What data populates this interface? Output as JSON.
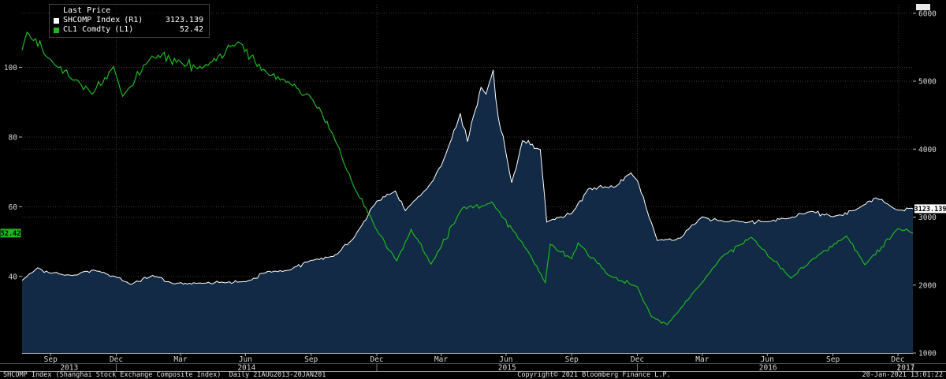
{
  "legend": {
    "title": "Last Price",
    "items": [
      {
        "label": "SHCOMP Index",
        "axis_tag": "(R1)",
        "value": "3123.139",
        "color": "#ffffff"
      },
      {
        "label": "CL1 Comdty",
        "axis_tag": "(L1)",
        "value": "52.42",
        "color": "#1fb71f"
      }
    ]
  },
  "axis_labels": {
    "right_last": "3123.139",
    "left_last": "52.42"
  },
  "footer": {
    "left": "SHCOMP Index (Shanghai Stock Exchange Composite Index)  Daily 21AUG2013-20JAN201",
    "center": "Copyright© 2021 Bloomberg Finance L.P.",
    "right": "20-Jan-2021 13:01:22"
  },
  "colors": {
    "background": "#000000",
    "shcomp_line": "#ffffff",
    "shcomp_area_fill": "#122a45",
    "cl1_line": "#1fb71f",
    "grid": "#3a3a3a",
    "axis_text": "#d9d9d9"
  },
  "chart_data": {
    "type": "line",
    "title": "Last Price",
    "x_range": [
      "2013-08-21",
      "2017-01-20"
    ],
    "left_axis": {
      "name": "CL1 Comdty (L1)",
      "ticks": [
        40,
        60,
        80,
        100
      ],
      "range": [
        18,
        118
      ]
    },
    "right_axis": {
      "name": "SHCOMP Index (R1)",
      "ticks": [
        1000,
        2000,
        3000,
        4000,
        5000,
        6000
      ],
      "range": [
        1000,
        6125
      ]
    },
    "grid": "dotted",
    "legend_position": "top-left",
    "x_ticks": [
      {
        "label": "Sep",
        "date": "2013-09-30"
      },
      {
        "label": "Dec",
        "date": "2013-12-31"
      },
      {
        "label": "Mar",
        "date": "2014-03-31"
      },
      {
        "label": "Jun",
        "date": "2014-06-30"
      },
      {
        "label": "Sep",
        "date": "2014-09-30"
      },
      {
        "label": "Dec",
        "date": "2014-12-31"
      },
      {
        "label": "Mar",
        "date": "2015-03-31"
      },
      {
        "label": "Jun",
        "date": "2015-06-30"
      },
      {
        "label": "Sep",
        "date": "2015-09-30"
      },
      {
        "label": "Dec",
        "date": "2015-12-31"
      },
      {
        "label": "Mar",
        "date": "2016-03-31"
      },
      {
        "label": "Jun",
        "date": "2016-06-30"
      },
      {
        "label": "Sep",
        "date": "2016-09-30"
      },
      {
        "label": "Dec",
        "date": "2016-12-30"
      }
    ],
    "year_labels": [
      {
        "label": "2013",
        "start": "2013-08-21",
        "end": "2013-12-31"
      },
      {
        "label": "2014",
        "start": "2013-12-31",
        "end": "2014-12-31"
      },
      {
        "label": "2015",
        "start": "2014-12-31",
        "end": "2015-12-31"
      },
      {
        "label": "2016",
        "start": "2015-12-31",
        "end": "2016-12-31"
      },
      {
        "label": "2017",
        "start": "2016-12-31",
        "end": "2017-01-20"
      }
    ],
    "series": [
      {
        "name": "SHCOMP Index",
        "axis": "right",
        "color": "#ffffff",
        "fill": "#122a45",
        "last": 3123.139,
        "points": [
          [
            "2013-08-21",
            2067
          ],
          [
            "2013-09-12",
            2255
          ],
          [
            "2013-09-30",
            2175
          ],
          [
            "2013-10-31",
            2141
          ],
          [
            "2013-11-29",
            2221
          ],
          [
            "2013-12-31",
            2116
          ],
          [
            "2014-01-20",
            2009
          ],
          [
            "2014-02-20",
            2142
          ],
          [
            "2014-03-20",
            2021
          ],
          [
            "2014-04-30",
            2026
          ],
          [
            "2014-05-30",
            2039
          ],
          [
            "2014-06-30",
            2048
          ],
          [
            "2014-07-31",
            2201
          ],
          [
            "2014-08-29",
            2217
          ],
          [
            "2014-09-30",
            2364
          ],
          [
            "2014-10-31",
            2420
          ],
          [
            "2014-11-28",
            2683
          ],
          [
            "2014-12-31",
            3235
          ],
          [
            "2015-01-26",
            3384
          ],
          [
            "2015-02-09",
            3095
          ],
          [
            "2015-03-17",
            3502
          ],
          [
            "2015-03-31",
            3748
          ],
          [
            "2015-04-27",
            4527
          ],
          [
            "2015-05-07",
            4112
          ],
          [
            "2015-05-26",
            4910
          ],
          [
            "2015-06-02",
            4810
          ],
          [
            "2015-06-12",
            5166
          ],
          [
            "2015-06-19",
            4478
          ],
          [
            "2015-06-26",
            4192
          ],
          [
            "2015-07-08",
            3507
          ],
          [
            "2015-07-23",
            4124
          ],
          [
            "2015-08-17",
            3994
          ],
          [
            "2015-08-26",
            2927
          ],
          [
            "2015-09-15",
            3005
          ],
          [
            "2015-09-30",
            3053
          ],
          [
            "2015-10-23",
            3412
          ],
          [
            "2015-11-30",
            3445
          ],
          [
            "2015-12-22",
            3651
          ],
          [
            "2015-12-31",
            3539
          ],
          [
            "2016-01-28",
            2655
          ],
          [
            "2016-02-29",
            2688
          ],
          [
            "2016-03-31",
            3004
          ],
          [
            "2016-04-29",
            2938
          ],
          [
            "2016-05-31",
            2917
          ],
          [
            "2016-06-30",
            2930
          ],
          [
            "2016-07-29",
            2979
          ],
          [
            "2016-08-31",
            3085
          ],
          [
            "2016-09-30",
            3005
          ],
          [
            "2016-10-31",
            3100
          ],
          [
            "2016-11-29",
            3282
          ],
          [
            "2016-12-30",
            3104
          ],
          [
            "2017-01-20",
            3123.139
          ]
        ]
      },
      {
        "name": "CL1 Comdty",
        "axis": "left",
        "color": "#1fb71f",
        "last": 52.42,
        "points": [
          [
            "2013-08-21",
            105.0
          ],
          [
            "2013-08-28",
            110.1
          ],
          [
            "2013-09-30",
            102.3
          ],
          [
            "2013-10-31",
            96.4
          ],
          [
            "2013-11-27",
            92.3
          ],
          [
            "2013-12-27",
            100.3
          ],
          [
            "2014-01-09",
            91.7
          ],
          [
            "2014-02-19",
            103.3
          ],
          [
            "2014-03-31",
            101.6
          ],
          [
            "2014-04-30",
            99.7
          ],
          [
            "2014-06-20",
            107.3
          ],
          [
            "2014-07-31",
            98.2
          ],
          [
            "2014-08-29",
            95.9
          ],
          [
            "2014-09-30",
            91.2
          ],
          [
            "2014-10-31",
            80.5
          ],
          [
            "2014-11-28",
            66.2
          ],
          [
            "2014-12-31",
            53.3
          ],
          [
            "2015-01-28",
            44.5
          ],
          [
            "2015-02-17",
            53.5
          ],
          [
            "2015-03-17",
            43.5
          ],
          [
            "2015-04-30",
            59.6
          ],
          [
            "2015-05-29",
            60.3
          ],
          [
            "2015-06-10",
            61.4
          ],
          [
            "2015-07-31",
            47.1
          ],
          [
            "2015-08-24",
            38.2
          ],
          [
            "2015-08-31",
            49.2
          ],
          [
            "2015-09-30",
            45.1
          ],
          [
            "2015-10-09",
            49.6
          ],
          [
            "2015-11-20",
            40.4
          ],
          [
            "2015-12-31",
            37.0
          ],
          [
            "2016-01-20",
            28.4
          ],
          [
            "2016-02-11",
            26.2
          ],
          [
            "2016-03-31",
            38.3
          ],
          [
            "2016-04-29",
            45.9
          ],
          [
            "2016-06-08",
            51.2
          ],
          [
            "2016-08-02",
            39.5
          ],
          [
            "2016-08-31",
            44.7
          ],
          [
            "2016-10-19",
            51.6
          ],
          [
            "2016-11-14",
            43.3
          ],
          [
            "2016-12-30",
            53.7
          ],
          [
            "2017-01-20",
            52.42
          ]
        ]
      }
    ]
  }
}
